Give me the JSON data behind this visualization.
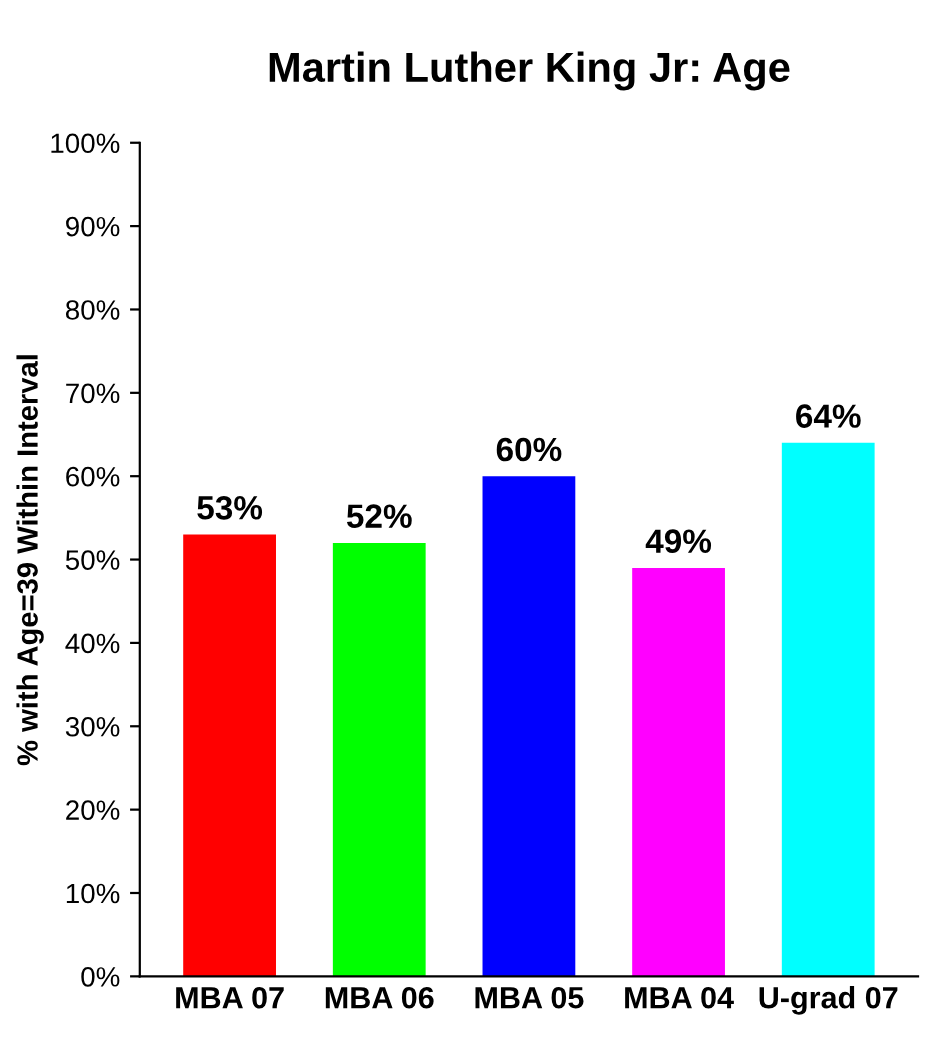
{
  "chart_data": {
    "type": "bar",
    "title": "Martin Luther King Jr: Age",
    "ylabel": "% with Age=39 Within Interval",
    "categories": [
      "MBA 07",
      "MBA 06",
      "MBA 05",
      "MBA 04",
      "U-grad 07"
    ],
    "values": [
      53,
      52,
      60,
      49,
      64
    ],
    "colors": [
      "#ff0000",
      "#00ff00",
      "#0000ff",
      "#ff00ff",
      "#00ffff"
    ],
    "value_labels": [
      "53%",
      "52%",
      "60%",
      "49%",
      "64%"
    ],
    "ylim": [
      0,
      100
    ],
    "yticks": [
      {
        "value": 0,
        "label": "0%"
      },
      {
        "value": 10,
        "label": "10%"
      },
      {
        "value": 20,
        "label": "20%"
      },
      {
        "value": 30,
        "label": "30%"
      },
      {
        "value": 40,
        "label": "40%"
      },
      {
        "value": 50,
        "label": "50%"
      },
      {
        "value": 60,
        "label": "60%"
      },
      {
        "value": 70,
        "label": "70%"
      },
      {
        "value": 80,
        "label": "80%"
      },
      {
        "value": 90,
        "label": "90%"
      },
      {
        "value": 100,
        "label": "100%"
      }
    ],
    "grid": false,
    "legend": false
  }
}
